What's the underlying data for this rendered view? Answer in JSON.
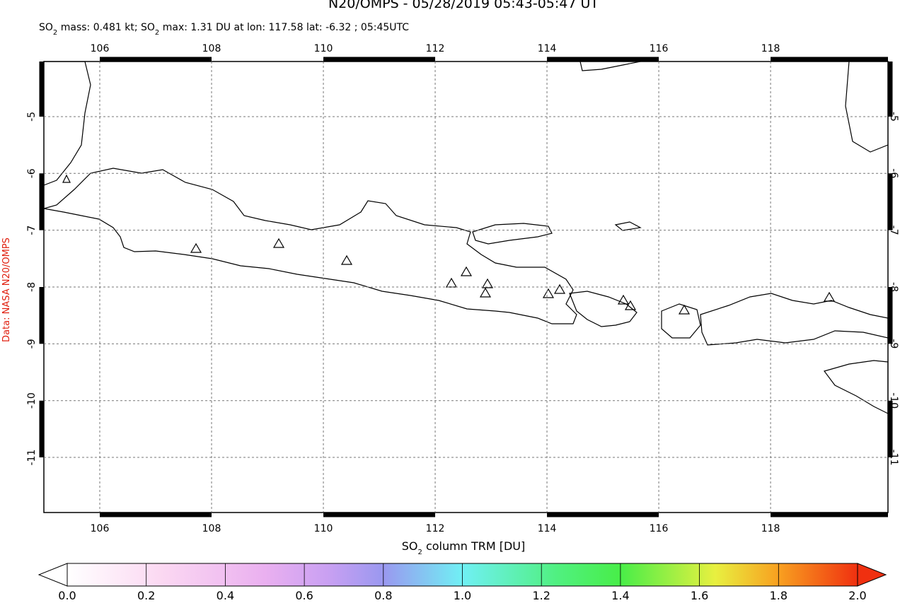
{
  "title": "N20/OMPS - 05/28/2019 05:43-05:47 UT",
  "subtitle_parts": [
    "SO",
    "2",
    " mass: 0.481 kt; SO",
    "2",
    " max: 1.31 DU at lon: 117.58 lat: -6.32 ; 05:45UTC"
  ],
  "credit": "Data: NASA N20/OMPS",
  "map": {
    "xlim": [
      105.0,
      120.1
    ],
    "ylim": [
      -11.97,
      -4.03
    ],
    "xticks": [
      106,
      108,
      110,
      112,
      114,
      116,
      118
    ],
    "yticks": [
      -5,
      -6,
      -7,
      -8,
      -9,
      -10,
      -11
    ],
    "grid": true
  },
  "colorbar": {
    "label_parts": [
      "SO",
      "2",
      " column TRM [DU]"
    ],
    "lim": [
      0,
      2
    ],
    "ticks": [
      {
        "value": 0,
        "label": "0.0"
      },
      {
        "value": 0.2,
        "label": "0.2"
      },
      {
        "value": 0.4,
        "label": "0.4"
      },
      {
        "value": 0.6,
        "label": "0.6"
      },
      {
        "value": 0.8,
        "label": "0.8"
      },
      {
        "value": 1.0,
        "label": "1.0"
      },
      {
        "value": 1.2,
        "label": "1.2"
      },
      {
        "value": 1.4,
        "label": "1.4"
      },
      {
        "value": 1.6,
        "label": "1.6"
      },
      {
        "value": 1.8,
        "label": "1.8"
      },
      {
        "value": 2.0,
        "label": "2.0"
      }
    ]
  }
}
